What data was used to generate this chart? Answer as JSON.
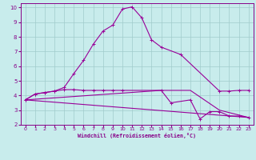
{
  "bg_color": "#c8ecec",
  "line_color": "#990099",
  "grid_color": "#a0cccc",
  "xlabel": "Windchill (Refroidissement éolien,°C)",
  "xlabel_color": "#880088",
  "tick_color": "#880088",
  "xlim": [
    -0.5,
    23.5
  ],
  "ylim": [
    2,
    10.3
  ],
  "xticks": [
    0,
    1,
    2,
    3,
    4,
    5,
    6,
    7,
    8,
    9,
    10,
    11,
    12,
    13,
    14,
    15,
    16,
    17,
    18,
    19,
    20,
    21,
    22,
    23
  ],
  "yticks": [
    2,
    3,
    4,
    5,
    6,
    7,
    8,
    9,
    10
  ],
  "curve1_x": [
    0,
    1,
    2,
    3,
    4,
    5,
    6,
    7,
    8,
    9,
    10,
    11,
    12,
    13,
    14,
    16,
    20,
    21,
    22,
    23
  ],
  "curve1_y": [
    3.7,
    4.1,
    4.2,
    4.3,
    4.55,
    5.5,
    6.4,
    7.5,
    8.4,
    8.8,
    9.9,
    10.05,
    9.3,
    7.8,
    7.3,
    6.8,
    4.3,
    4.3,
    4.35,
    4.35
  ],
  "curve2_x": [
    0,
    1,
    2,
    3,
    4,
    5,
    6,
    7,
    8,
    9,
    10,
    14,
    15,
    17,
    18,
    19,
    20,
    21,
    22,
    23
  ],
  "curve2_y": [
    3.7,
    4.1,
    4.2,
    4.3,
    4.4,
    4.4,
    4.35,
    4.35,
    4.35,
    4.35,
    4.35,
    4.35,
    3.5,
    3.7,
    2.4,
    2.9,
    2.9,
    2.6,
    2.6,
    2.5
  ],
  "curve3_x": [
    0,
    23
  ],
  "curve3_y": [
    3.7,
    2.5
  ],
  "curve4_x": [
    0,
    14,
    17,
    20,
    23
  ],
  "curve4_y": [
    3.7,
    4.35,
    4.35,
    3.0,
    2.5
  ],
  "marker": "+"
}
